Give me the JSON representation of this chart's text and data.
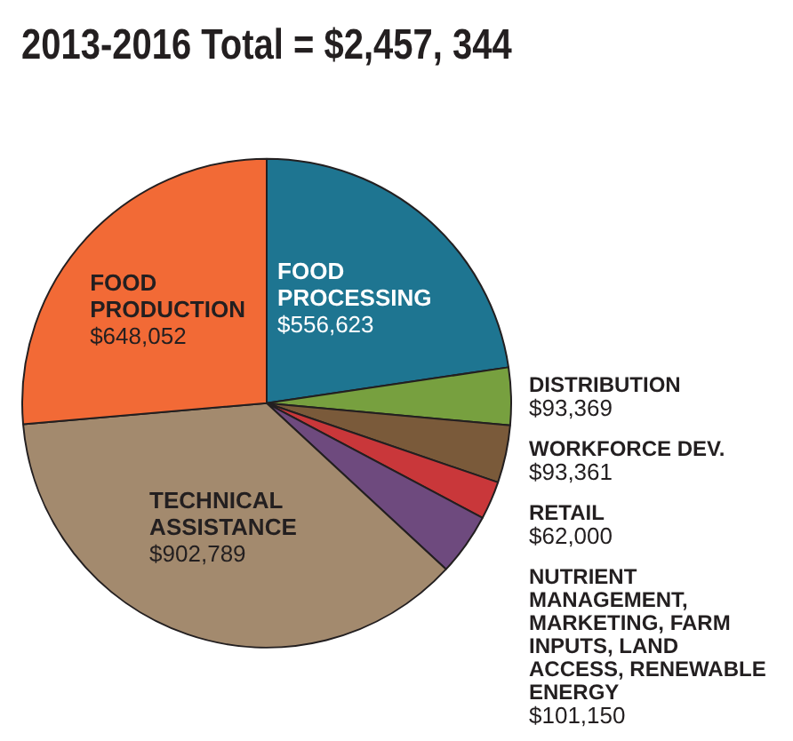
{
  "chart_data": {
    "type": "pie",
    "title": "2013-2016 Total = $2,457, 344",
    "categories": [
      "FOOD PROCESSING",
      "DISTRIBUTION",
      "WORKFORCE DEV.",
      "RETAIL",
      "NUTRIENT MANAGEMENT, MARKETING, FARM INPUTS, LAND ACCESS, RENEWABLE ENERGY",
      "TECHNICAL ASSISTANCE",
      "FOOD PRODUCTION"
    ],
    "values": [
      556623,
      93369,
      93361,
      62000,
      101150,
      902789,
      648052
    ],
    "value_labels": [
      "$556,623",
      "$93,369",
      "$93,361",
      "$62,000",
      "$101,150",
      "$902,789",
      "$648,052"
    ],
    "colors": [
      "#1e7591",
      "#77a03f",
      "#7a5a3a",
      "#c9373a",
      "#6e4a7e",
      "#a38a6e",
      "#f26a36"
    ],
    "legend": false
  }
}
